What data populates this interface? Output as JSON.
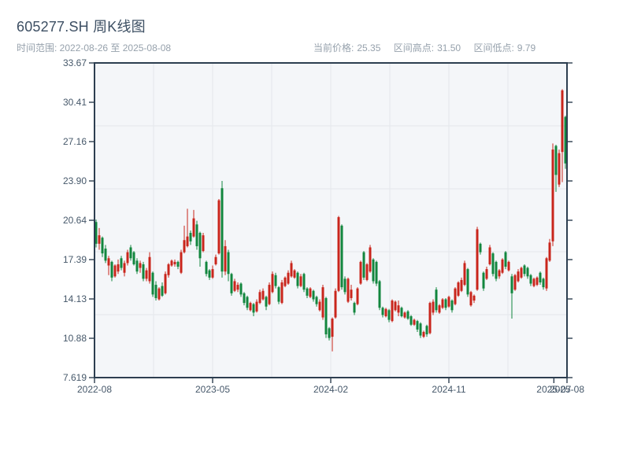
{
  "header": {
    "title": "605277.SH 周K线图",
    "date_range": "时间范围: 2022-08-26 至 2025-08-08",
    "stats": [
      {
        "label": "当前价格:",
        "value": "25.35"
      },
      {
        "label": "区间高点:",
        "value": "31.50"
      },
      {
        "label": "区间低点:",
        "value": "9.79"
      }
    ]
  },
  "chart_data": {
    "type": "candlestick",
    "symbol": "605277.SH",
    "interval": "weekly",
    "start_date": "2022-08-26",
    "end_date": "2025-08-08",
    "current_price": 25.35,
    "range_high": 31.5,
    "range_low": 9.79,
    "ylim": [
      7.619,
      33.67
    ],
    "y_tick_labels": [
      "33.67",
      "30.41",
      "27.16",
      "23.90",
      "20.64",
      "17.39",
      "14.13",
      "10.88",
      "7.619"
    ],
    "x_ticks": [
      {
        "label": "2022-08",
        "month_offset": 0
      },
      {
        "label": "2023-05",
        "month_offset": 9
      },
      {
        "label": "2024-02",
        "month_offset": 18
      },
      {
        "label": "2024-11",
        "month_offset": 27
      },
      {
        "label": "2025-07",
        "month_offset": 35
      },
      {
        "label": "2025-08",
        "month_offset": 36
      }
    ],
    "total_months": 36,
    "grid": true,
    "up_color": "#c9251c",
    "down_color": "#12863e",
    "ohlc": [
      [
        20.5,
        20.7,
        18.4,
        18.7
      ],
      [
        18.7,
        20.0,
        18.2,
        19.4
      ],
      [
        19.2,
        19.3,
        17.6,
        17.9
      ],
      [
        18.3,
        18.6,
        17.1,
        17.3
      ],
      [
        16.9,
        17.7,
        16.1,
        17.5
      ],
      [
        17.2,
        17.3,
        15.6,
        15.9
      ],
      [
        16.0,
        17.0,
        15.9,
        16.9
      ],
      [
        16.4,
        17.4,
        16.2,
        17.0
      ],
      [
        17.5,
        17.7,
        16.5,
        16.7
      ],
      [
        16.3,
        17.3,
        16.0,
        17.1
      ],
      [
        17.1,
        18.2,
        16.9,
        18.0
      ],
      [
        18.4,
        18.6,
        17.3,
        17.5
      ],
      [
        18.0,
        18.1,
        16.9,
        17.0
      ],
      [
        17.3,
        17.5,
        16.2,
        16.4
      ],
      [
        16.7,
        17.3,
        16.3,
        17.1
      ],
      [
        17.0,
        17.2,
        15.6,
        15.8
      ],
      [
        15.8,
        16.7,
        15.6,
        16.5
      ],
      [
        15.6,
        18.0,
        15.4,
        17.6
      ],
      [
        16.3,
        16.4,
        14.3,
        14.5
      ],
      [
        15.3,
        15.6,
        14.0,
        14.2
      ],
      [
        14.1,
        15.1,
        14.0,
        15.0
      ],
      [
        15.2,
        15.5,
        14.3,
        14.4
      ],
      [
        14.6,
        16.4,
        14.5,
        16.2
      ],
      [
        16.1,
        17.1,
        15.9,
        17.0
      ],
      [
        16.9,
        17.4,
        16.8,
        17.3
      ],
      [
        17.0,
        17.4,
        16.8,
        17.2
      ],
      [
        17.2,
        17.3,
        16.6,
        16.8
      ],
      [
        16.3,
        18.2,
        16.2,
        18.0
      ],
      [
        18.0,
        20.2,
        17.9,
        19.0
      ],
      [
        18.5,
        21.6,
        18.4,
        19.3
      ],
      [
        19.6,
        19.8,
        18.6,
        18.9
      ],
      [
        19.3,
        21.5,
        19.2,
        20.8
      ],
      [
        20.3,
        20.6,
        18.2,
        18.5
      ],
      [
        19.6,
        19.7,
        16.8,
        17.5
      ],
      [
        18.1,
        19.6,
        18.0,
        19.4
      ],
      [
        17.2,
        17.3,
        16.0,
        16.2
      ],
      [
        16.5,
        16.6,
        15.7,
        15.9
      ],
      [
        15.9,
        16.9,
        15.8,
        16.6
      ],
      [
        17.0,
        17.8,
        16.9,
        17.6
      ],
      [
        17.9,
        22.4,
        17.8,
        22.3
      ],
      [
        23.3,
        23.9,
        15.9,
        16.4
      ],
      [
        16.4,
        19.0,
        16.1,
        18.5
      ],
      [
        18.0,
        18.2,
        15.6,
        16.2
      ],
      [
        16.2,
        16.3,
        14.4,
        14.6
      ],
      [
        14.8,
        15.8,
        14.7,
        15.6
      ],
      [
        14.9,
        15.5,
        14.7,
        15.3
      ],
      [
        15.4,
        15.5,
        14.3,
        14.5
      ],
      [
        14.6,
        14.7,
        13.6,
        13.8
      ],
      [
        14.3,
        14.4,
        13.2,
        13.4
      ],
      [
        13.2,
        13.9,
        13.1,
        13.8
      ],
      [
        13.7,
        13.8,
        12.7,
        13.0
      ],
      [
        13.1,
        14.1,
        13.0,
        13.9
      ],
      [
        13.8,
        14.9,
        13.7,
        14.7
      ],
      [
        14.1,
        15.0,
        14.0,
        14.8
      ],
      [
        14.3,
        14.4,
        13.2,
        13.5
      ],
      [
        13.7,
        15.5,
        13.6,
        15.3
      ],
      [
        14.7,
        16.4,
        14.6,
        16.2
      ],
      [
        16.1,
        16.3,
        15.0,
        15.2
      ],
      [
        15.1,
        15.2,
        13.7,
        13.9
      ],
      [
        13.8,
        15.7,
        13.7,
        15.5
      ],
      [
        15.2,
        16.0,
        15.1,
        15.9
      ],
      [
        15.4,
        16.5,
        15.3,
        16.3
      ],
      [
        16.0,
        17.3,
        15.9,
        17.1
      ],
      [
        15.9,
        16.6,
        15.8,
        16.5
      ],
      [
        16.3,
        16.4,
        15.0,
        15.2
      ],
      [
        15.2,
        16.2,
        15.1,
        16.0
      ],
      [
        16.2,
        16.3,
        14.7,
        14.9
      ],
      [
        15.0,
        15.1,
        14.2,
        14.4
      ],
      [
        14.3,
        15.1,
        14.2,
        15.0
      ],
      [
        14.8,
        14.9,
        13.9,
        14.1
      ],
      [
        14.3,
        14.4,
        13.5,
        13.7
      ],
      [
        13.2,
        14.1,
        13.1,
        13.9
      ],
      [
        12.6,
        15.3,
        12.4,
        15.1
      ],
      [
        14.2,
        14.3,
        10.9,
        11.2
      ],
      [
        11.7,
        11.8,
        10.7,
        10.9
      ],
      [
        11.0,
        12.6,
        9.79,
        12.5
      ],
      [
        12.6,
        15.0,
        12.5,
        14.8
      ],
      [
        14.8,
        21.0,
        14.7,
        20.9
      ],
      [
        20.2,
        20.3,
        14.9,
        15.1
      ],
      [
        15.8,
        16.0,
        14.5,
        14.7
      ],
      [
        13.9,
        15.9,
        13.8,
        15.8
      ],
      [
        14.2,
        15.3,
        14.0,
        14.9
      ],
      [
        13.8,
        13.9,
        12.8,
        13.0
      ],
      [
        13.7,
        15.1,
        13.6,
        15.0
      ],
      [
        15.4,
        17.3,
        15.3,
        17.2
      ],
      [
        18.0,
        18.1,
        15.7,
        15.9
      ],
      [
        15.7,
        17.1,
        15.6,
        17.0
      ],
      [
        16.4,
        18.6,
        16.3,
        18.4
      ],
      [
        17.4,
        17.5,
        15.4,
        15.6
      ],
      [
        17.2,
        17.3,
        15.2,
        15.4
      ],
      [
        15.6,
        15.7,
        13.2,
        13.4
      ],
      [
        13.4,
        13.5,
        12.6,
        12.8
      ],
      [
        12.7,
        13.4,
        12.6,
        13.3
      ],
      [
        13.2,
        13.3,
        12.2,
        12.4
      ],
      [
        12.3,
        14.1,
        12.2,
        14.0
      ],
      [
        13.2,
        14.0,
        13.1,
        13.9
      ],
      [
        13.0,
        14.0,
        12.7,
        13.6
      ],
      [
        13.4,
        13.5,
        12.6,
        12.7
      ],
      [
        12.6,
        13.1,
        12.5,
        13.0
      ],
      [
        13.1,
        13.2,
        12.4,
        12.5
      ],
      [
        12.7,
        12.8,
        11.9,
        12.0
      ],
      [
        12.0,
        12.5,
        11.9,
        12.4
      ],
      [
        12.3,
        12.4,
        11.4,
        11.6
      ],
      [
        12.1,
        12.2,
        10.9,
        11.1
      ],
      [
        11.0,
        11.5,
        10.9,
        11.4
      ],
      [
        11.9,
        12.0,
        11.0,
        11.2
      ],
      [
        11.3,
        13.9,
        11.2,
        13.8
      ],
      [
        13.0,
        14.1,
        12.8,
        13.9
      ],
      [
        14.9,
        15.1,
        13.0,
        13.2
      ],
      [
        13.0,
        13.7,
        12.9,
        13.6
      ],
      [
        13.4,
        14.2,
        13.3,
        14.1
      ],
      [
        14.1,
        14.2,
        13.2,
        13.4
      ],
      [
        13.5,
        14.4,
        13.4,
        14.3
      ],
      [
        14.0,
        14.1,
        13.0,
        13.2
      ],
      [
        13.7,
        15.1,
        13.6,
        15.0
      ],
      [
        14.4,
        15.6,
        14.3,
        15.5
      ],
      [
        14.8,
        15.9,
        14.7,
        15.7
      ],
      [
        15.3,
        17.3,
        15.2,
        17.1
      ],
      [
        16.6,
        16.7,
        14.3,
        14.5
      ],
      [
        13.6,
        14.8,
        13.5,
        14.7
      ],
      [
        14.0,
        14.5,
        13.8,
        14.4
      ],
      [
        14.9,
        20.1,
        14.8,
        19.9
      ],
      [
        18.7,
        18.8,
        17.8,
        18.0
      ],
      [
        16.3,
        16.4,
        14.8,
        15.0
      ],
      [
        15.8,
        16.8,
        15.7,
        16.6
      ],
      [
        17.0,
        18.6,
        16.9,
        18.4
      ],
      [
        17.9,
        18.0,
        16.0,
        16.2
      ],
      [
        17.2,
        17.3,
        15.6,
        15.8
      ],
      [
        16.0,
        16.6,
        15.8,
        16.5
      ],
      [
        16.3,
        17.5,
        16.2,
        17.4
      ],
      [
        18.0,
        18.1,
        16.6,
        16.8
      ],
      [
        16.5,
        17.3,
        16.4,
        17.2
      ],
      [
        16.0,
        16.2,
        12.5,
        14.6
      ],
      [
        14.9,
        16.2,
        14.8,
        16.1
      ],
      [
        15.6,
        16.6,
        15.5,
        16.4
      ],
      [
        15.9,
        16.8,
        15.8,
        16.7
      ],
      [
        16.9,
        17.0,
        16.0,
        16.2
      ],
      [
        16.7,
        16.8,
        15.8,
        16.0
      ],
      [
        16.1,
        16.2,
        15.2,
        15.4
      ],
      [
        15.2,
        15.9,
        15.1,
        15.8
      ],
      [
        15.3,
        16.0,
        15.2,
        15.9
      ],
      [
        16.3,
        16.4,
        15.3,
        15.5
      ],
      [
        15.8,
        15.9,
        14.9,
        15.1
      ],
      [
        15.0,
        17.6,
        14.8,
        17.5
      ],
      [
        17.3,
        19.1,
        17.2,
        18.8
      ],
      [
        18.9,
        27.0,
        18.5,
        26.5
      ],
      [
        26.8,
        26.9,
        23.0,
        24.4
      ],
      [
        23.6,
        26.5,
        23.4,
        26.2
      ],
      [
        26.3,
        31.5,
        23.8,
        31.4
      ],
      [
        29.2,
        29.3,
        24.9,
        25.35
      ]
    ]
  }
}
